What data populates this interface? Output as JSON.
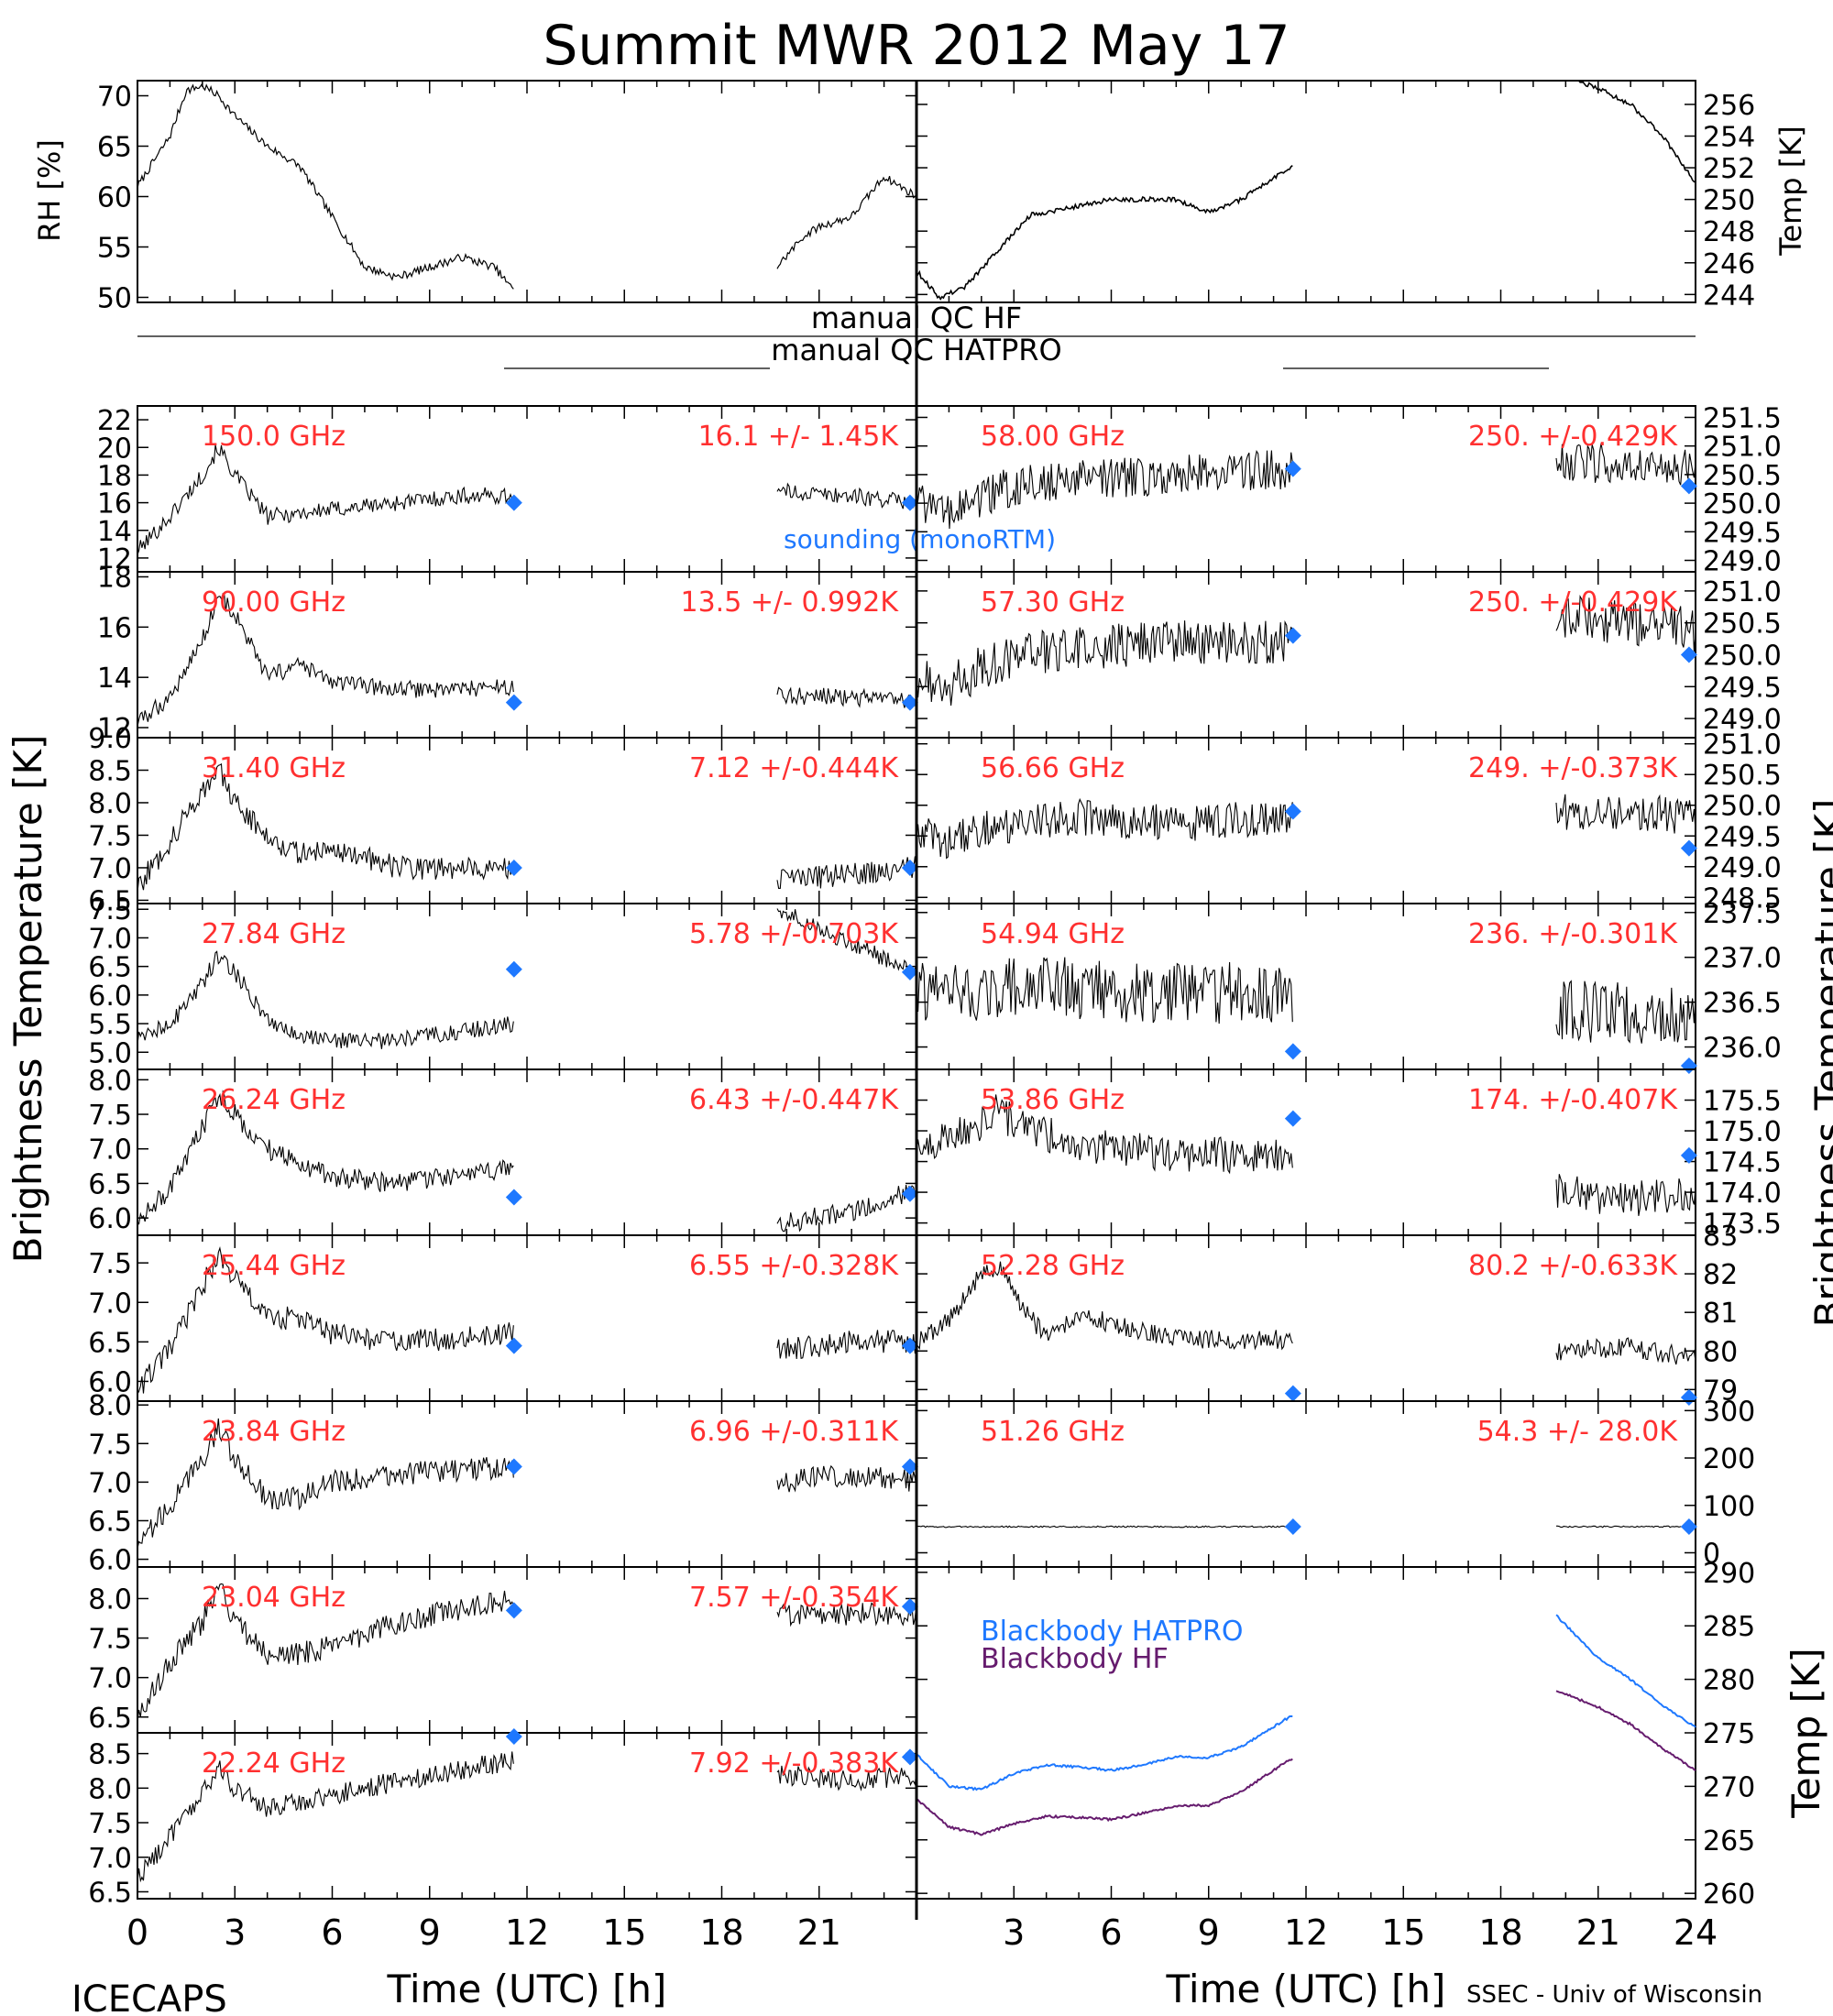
{
  "title": "Summit MWR 2012 May 17",
  "footer": {
    "left": "ICECAPS",
    "right": "SSEC - Univ of Wisconsin"
  },
  "xaxis": {
    "label": "Time (UTC) [h]",
    "ticks": [
      "0",
      "3",
      "6",
      "9",
      "12",
      "15",
      "18",
      "21",
      "24"
    ]
  },
  "side_labels": {
    "left": "Brightness Temperature [K]",
    "right": "Brightness Temperature [K]"
  },
  "qc_labels": {
    "hf": "manual QC HF",
    "hatpro": "manual QC HATPRO"
  },
  "colors": {
    "data": "#000000",
    "label": "#ff3030",
    "sounding": "#1e78ff",
    "bb_hatpro": "#1e78ff",
    "bb_hf": "#661c6e"
  },
  "chart_data": {
    "type": "line",
    "x_range": [
      0,
      24
    ],
    "gaps": [
      [
        11.6,
        19.7
      ]
    ],
    "top": {
      "rh": {
        "ylabel": "RH [%]",
        "ylim": [
          49.5,
          71.5
        ],
        "ticks": [
          "50",
          "55",
          "60",
          "65",
          "70"
        ],
        "x": [
          0,
          1,
          1.5,
          2,
          2.5,
          3,
          4,
          5,
          6,
          7,
          8,
          9,
          10,
          11,
          11.5,
          19.7,
          20.5,
          21,
          22,
          23,
          24
        ],
        "y": [
          61,
          66,
          70.5,
          71,
          70,
          68,
          65,
          63,
          58,
          53,
          52,
          53,
          54,
          53,
          51,
          53,
          56,
          57,
          58,
          62,
          60
        ]
      },
      "temp": {
        "ylabel": "Temp [K]",
        "ylim": [
          243.5,
          257.5
        ],
        "ticks": [
          "244",
          "246",
          "248",
          "250",
          "252",
          "254",
          "256"
        ],
        "x": [
          0,
          0.7,
          1.5,
          3.5,
          6,
          8,
          9,
          10,
          11.5,
          19.7,
          21,
          22,
          23,
          24
        ],
        "y": [
          245.5,
          243.8,
          244.5,
          249,
          250,
          250,
          249.2,
          250,
          252,
          258,
          257,
          256,
          254,
          251
        ]
      }
    },
    "channels_left": [
      {
        "label": "150.0 GHz",
        "stat": "16.1 +/-  1.45K",
        "ylim": [
          11,
          23
        ],
        "ticks": [
          "12",
          "14",
          "16",
          "18",
          "20",
          "22"
        ],
        "noise": 0.6,
        "x": [
          0,
          1,
          2,
          2.5,
          3,
          4,
          6,
          8,
          10,
          11.5,
          19.7,
          22,
          24
        ],
        "y": [
          12.5,
          15,
          18,
          20,
          18,
          15,
          15.5,
          16,
          16.5,
          16.5,
          16.8,
          16.5,
          16
        ],
        "sounding": [
          [
            11.6,
            16
          ],
          [
            23.8,
            16
          ]
        ]
      },
      {
        "label": "90.00 GHz",
        "stat": "13.5 +/- 0.992K",
        "ylim": [
          11.6,
          18.2
        ],
        "ticks": [
          "12",
          "14",
          "16",
          "18"
        ],
        "noise": 0.35,
        "x": [
          0,
          1,
          2,
          2.5,
          3,
          4,
          5,
          6,
          8,
          11.5,
          19.7,
          22,
          24
        ],
        "y": [
          12.2,
          13.2,
          15.5,
          17.3,
          16.5,
          14,
          14.5,
          13.8,
          13.5,
          13.6,
          13.3,
          13.2,
          13
        ],
        "sounding": [
          [
            11.6,
            13
          ],
          [
            23.8,
            13
          ]
        ]
      },
      {
        "label": "31.40 GHz",
        "stat": "7.12 +/-0.444K",
        "ylim": [
          6.45,
          9.0
        ],
        "ticks": [
          "6.5",
          "7.0",
          "7.5",
          "8.0",
          "8.5",
          "9.0"
        ],
        "noise": 0.18,
        "x": [
          0,
          1,
          2,
          2.5,
          3,
          4,
          5,
          6,
          8,
          11.5,
          19.7,
          22,
          24
        ],
        "y": [
          6.7,
          7.4,
          8.2,
          8.5,
          8.0,
          7.5,
          7.2,
          7.3,
          7.0,
          7.0,
          6.8,
          6.9,
          7.0
        ],
        "sounding": [
          [
            11.6,
            7.0
          ],
          [
            23.8,
            7.0
          ]
        ]
      },
      {
        "label": "27.84 GHz",
        "stat": "5.78 +/-0.703K",
        "ylim": [
          4.7,
          7.6
        ],
        "ticks": [
          "5.0",
          "5.5",
          "6.0",
          "6.5",
          "7.0",
          "7.5"
        ],
        "noise": 0.15,
        "x": [
          0,
          1,
          2,
          2.5,
          3,
          4,
          5,
          6,
          8,
          11.5,
          19.7,
          22,
          24
        ],
        "y": [
          5.2,
          5.5,
          6.2,
          6.7,
          6.4,
          5.6,
          5.3,
          5.2,
          5.2,
          5.5,
          7.5,
          6.9,
          6.4
        ],
        "sounding": [
          [
            11.6,
            6.45
          ],
          [
            23.8,
            6.4
          ]
        ]
      },
      {
        "label": "26.24 GHz",
        "stat": "6.43 +/-0.447K",
        "ylim": [
          5.75,
          8.15
        ],
        "ticks": [
          "6.0",
          "6.5",
          "7.0",
          "7.5",
          "8.0"
        ],
        "noise": 0.15,
        "x": [
          0,
          1,
          2,
          2.5,
          3,
          4,
          5,
          6,
          8,
          11.5,
          19.7,
          22,
          24
        ],
        "y": [
          6.0,
          6.4,
          7.3,
          7.8,
          7.5,
          7.0,
          6.8,
          6.6,
          6.5,
          6.7,
          5.9,
          6.1,
          6.4
        ],
        "sounding": [
          [
            11.6,
            6.3
          ],
          [
            23.8,
            6.35
          ]
        ]
      },
      {
        "label": "25.44 GHz",
        "stat": "6.55 +/-0.328K",
        "ylim": [
          5.75,
          7.85
        ],
        "ticks": [
          "6.0",
          "6.5",
          "7.0",
          "7.5"
        ],
        "noise": 0.15,
        "x": [
          0,
          1,
          2,
          2.5,
          3,
          4,
          5,
          6,
          8,
          11.5,
          19.7,
          22,
          24
        ],
        "y": [
          5.9,
          6.4,
          7.2,
          7.6,
          7.3,
          6.8,
          6.8,
          6.6,
          6.5,
          6.6,
          6.4,
          6.5,
          6.5
        ],
        "sounding": [
          [
            11.6,
            6.45
          ],
          [
            23.8,
            6.45
          ]
        ]
      },
      {
        "label": "23.84 GHz",
        "stat": "6.96 +/-0.311K",
        "ylim": [
          5.9,
          8.05
        ],
        "ticks": [
          "6.0",
          "6.5",
          "7.0",
          "7.5",
          "8.0"
        ],
        "noise": 0.15,
        "x": [
          0,
          1,
          2,
          2.5,
          3,
          4,
          5,
          6,
          8,
          11.5,
          19.7,
          22,
          24
        ],
        "y": [
          6.2,
          6.7,
          7.3,
          7.7,
          7.3,
          6.8,
          6.8,
          7.0,
          7.1,
          7.2,
          7.0,
          7.1,
          7.0
        ],
        "sounding": [
          [
            11.6,
            7.2
          ],
          [
            23.8,
            7.2
          ]
        ]
      },
      {
        "label": "23.04 GHz",
        "stat": "7.57 +/-0.354K",
        "ylim": [
          6.3,
          8.4
        ],
        "ticks": [
          "6.5",
          "7.0",
          "7.5",
          "8.0"
        ],
        "noise": 0.15,
        "x": [
          0,
          1,
          2,
          2.5,
          3,
          4,
          5,
          6,
          8,
          11.5,
          19.7,
          22,
          24
        ],
        "y": [
          6.5,
          7.2,
          7.7,
          8.2,
          7.7,
          7.3,
          7.3,
          7.4,
          7.7,
          8.0,
          7.8,
          7.8,
          7.8
        ],
        "sounding": [
          [
            11.6,
            7.85
          ],
          [
            23.8,
            7.9
          ]
        ]
      },
      {
        "label": "22.24 GHz",
        "stat": "7.92 +/-0.383K",
        "ylim": [
          6.4,
          8.8
        ],
        "ticks": [
          "6.5",
          "7.0",
          "7.5",
          "8.0",
          "8.5"
        ],
        "noise": 0.15,
        "x": [
          0,
          1,
          2,
          2.5,
          3,
          4,
          5,
          6,
          8,
          11.5,
          19.7,
          22,
          24
        ],
        "y": [
          6.7,
          7.3,
          7.9,
          8.3,
          8.0,
          7.7,
          7.8,
          7.9,
          8.1,
          8.4,
          8.2,
          8.1,
          8.2
        ],
        "sounding": [
          [
            11.6,
            8.8
          ],
          [
            23.8,
            8.45
          ]
        ]
      }
    ],
    "channels_right": [
      {
        "label": "58.00 GHz",
        "stat": "250. +/-0.429K",
        "ylim": [
          248.8,
          251.7
        ],
        "ticks": [
          "249.0",
          "249.5",
          "250.0",
          "250.5",
          "251.0",
          "251.5"
        ],
        "noise": 0.35,
        "x": [
          0,
          1,
          2,
          3,
          5,
          8,
          11.5,
          19.7,
          22,
          24
        ],
        "y": [
          250.0,
          249.8,
          250.1,
          250.3,
          250.4,
          250.5,
          250.6,
          250.7,
          250.7,
          250.6
        ],
        "sounding": [
          [
            11.6,
            250.6
          ],
          [
            23.8,
            250.3
          ]
        ]
      },
      {
        "label": "57.30 GHz",
        "stat": "250. +/-0.429K",
        "ylim": [
          248.7,
          251.3
        ],
        "ticks": [
          "249.0",
          "249.5",
          "250.0",
          "250.5",
          "251.0"
        ],
        "noise": 0.35,
        "x": [
          0,
          1,
          2,
          3,
          5,
          8,
          11.5,
          19.7,
          22,
          24
        ],
        "y": [
          249.6,
          249.5,
          249.8,
          250.0,
          250.1,
          250.2,
          250.2,
          250.6,
          250.5,
          250.4
        ],
        "sounding": [
          [
            11.6,
            250.3
          ],
          [
            23.8,
            250.0
          ]
        ]
      },
      {
        "label": "56.66 GHz",
        "stat": "249. +/-0.373K",
        "ylim": [
          248.4,
          251.1
        ],
        "ticks": [
          "248.5",
          "249.0",
          "249.5",
          "250.0",
          "250.5",
          "251.0"
        ],
        "noise": 0.3,
        "x": [
          0,
          1,
          2,
          3,
          5,
          8,
          11.5,
          19.7,
          22,
          24
        ],
        "y": [
          249.6,
          249.4,
          249.6,
          249.7,
          249.8,
          249.7,
          249.8,
          249.9,
          249.9,
          249.8
        ],
        "sounding": [
          [
            11.6,
            249.9
          ],
          [
            23.8,
            249.3
          ]
        ]
      },
      {
        "label": "54.94 GHz",
        "stat": "236. +/-0.301K",
        "ylim": [
          235.75,
          237.6
        ],
        "ticks": [
          "236.0",
          "236.5",
          "237.0",
          "237.5"
        ],
        "noise": 0.35,
        "x": [
          0,
          2,
          4,
          6,
          8,
          11.5,
          19.7,
          22,
          24
        ],
        "y": [
          236.6,
          236.6,
          236.7,
          236.6,
          236.6,
          236.6,
          236.4,
          236.4,
          236.3
        ],
        "sounding": [
          [
            11.6,
            235.95
          ],
          [
            23.8,
            235.75
          ]
        ]
      },
      {
        "label": "53.86 GHz",
        "stat": "174. +/-0.407K",
        "ylim": [
          173.3,
          176.0
        ],
        "ticks": [
          "173.5",
          "174.0",
          "174.5",
          "175.0",
          "175.5"
        ],
        "noise": 0.3,
        "x": [
          0,
          1,
          2,
          2.5,
          3,
          5,
          8,
          11.5,
          19.7,
          22,
          24
        ],
        "y": [
          174.7,
          174.9,
          175.1,
          175.4,
          175.1,
          174.8,
          174.6,
          174.6,
          174.0,
          173.9,
          174.0
        ],
        "sounding": [
          [
            11.6,
            175.2
          ],
          [
            23.8,
            174.6
          ]
        ]
      },
      {
        "label": "52.28 GHz",
        "stat": "80.2 +/-0.633K",
        "ylim": [
          78.7,
          83.0
        ],
        "ticks": [
          "79",
          "80",
          "81",
          "82",
          "83"
        ],
        "noise": 0.25,
        "x": [
          0,
          1,
          2,
          2.5,
          3,
          4,
          5,
          6,
          8,
          11.5,
          19.7,
          22,
          24
        ],
        "y": [
          80.2,
          80.8,
          82.0,
          82.2,
          81.5,
          80.3,
          81.0,
          80.7,
          80.3,
          80.3,
          80.0,
          80.1,
          79.8
        ],
        "sounding": [
          [
            11.6,
            78.9
          ],
          [
            23.8,
            78.6
          ]
        ]
      },
      {
        "label": "51.26 GHz",
        "stat": "54.3 +/- 28.0K",
        "ylim": [
          -30,
          320
        ],
        "ticks": [
          "0",
          "100",
          "200",
          "300"
        ],
        "noise": 1.5,
        "x": [
          0,
          2,
          4,
          6,
          8,
          11.5,
          19.7,
          22,
          24
        ],
        "y": [
          55,
          55,
          55,
          55,
          55,
          55,
          55,
          55,
          55
        ],
        "sounding": [
          [
            11.6,
            55
          ],
          [
            23.8,
            55
          ]
        ]
      }
    ],
    "blackbody": {
      "ylabel": "Temp [K]",
      "ylim": [
        259.5,
        290.5
      ],
      "ticks": [
        "260",
        "265",
        "270",
        "275",
        "280",
        "285",
        "290"
      ],
      "series": [
        {
          "name": "Blackbody HATPRO",
          "color": "#1e78ff",
          "x": [
            0,
            1,
            2,
            3,
            4,
            5,
            6,
            7,
            8,
            9,
            10,
            11.5,
            19.7,
            21,
            22,
            23,
            24
          ],
          "y": [
            273,
            270,
            269.7,
            271.2,
            272,
            271.8,
            271.5,
            272,
            272.8,
            272.7,
            273.7,
            276.5,
            286,
            282,
            280,
            277.5,
            275.5
          ]
        },
        {
          "name": "Blackbody HF",
          "color": "#661c6e",
          "x": [
            0,
            1,
            2,
            3,
            4,
            5,
            6,
            7,
            8,
            9,
            10,
            11.5,
            19.7,
            21,
            22,
            23,
            24
          ],
          "y": [
            268.8,
            266.2,
            265.5,
            266.5,
            267.2,
            267.1,
            266.9,
            267.5,
            268.2,
            268.2,
            269.5,
            272.5,
            279,
            277.4,
            275.8,
            273.5,
            271.5
          ]
        }
      ]
    }
  }
}
